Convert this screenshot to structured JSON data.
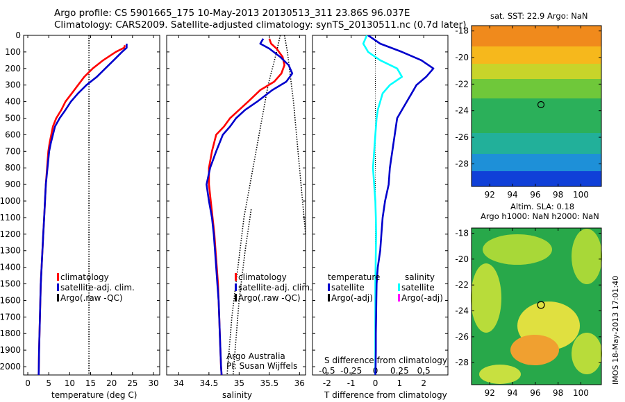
{
  "title_line1": "Argo profile: CS 5901665_175 10-May-2013 20130513_311 23.86S 96.037E",
  "title_line2": "Climatology: CARS2009. Satellite-adjusted climatology: synTS_20130511.nc (0.7d later)",
  "stamp": "IMOS 18-May-2013 17:01:40",
  "colors": {
    "climatology": "#ff0000",
    "satellite": "#0000cc",
    "argo": "#000000",
    "s_satellite": "#00ffff",
    "s_argo": "#ff00ff"
  },
  "depth_axis": {
    "ylim": [
      0,
      2050
    ],
    "reversed": true,
    "ticks": [
      0,
      100,
      200,
      300,
      400,
      500,
      600,
      700,
      800,
      900,
      1000,
      1100,
      1200,
      1300,
      1400,
      1500,
      1600,
      1700,
      1800,
      1900,
      2000
    ]
  },
  "panels": {
    "temperature": {
      "xlabel": "temperature (deg C)",
      "xticks": [
        0,
        5,
        10,
        15,
        20,
        25,
        30
      ],
      "legend": [
        "climatology",
        "satellite-adj. clim.",
        "Argo(.raw -QC)"
      ]
    },
    "salinity": {
      "xlabel": "salinity",
      "xticks": [
        34,
        34.5,
        35,
        35.5,
        36
      ],
      "legend": [
        "climatology",
        "satellite-adj. clim.",
        "Argo(.raw -QC)"
      ],
      "note1": "Argo Australia",
      "note2": "PI: Susan Wijffels"
    },
    "difference": {
      "xlabel": "T difference from climatology",
      "xlabel_top": "S difference from climatology",
      "xticks_T": [
        -2,
        -1,
        0,
        1,
        2
      ],
      "xticks_S": [
        "-0.5",
        "-0.25",
        "0",
        "0.25",
        "0.5"
      ],
      "legend_temp_head": "temperature",
      "legend_sal_head": "salinity",
      "legend_temp": [
        "satellite",
        "Argo(-adj)"
      ],
      "legend_sal": [
        "satellite",
        "Argo(-adj)"
      ]
    }
  },
  "maps": {
    "sst": {
      "title": "sat. SST: 22.9 Argo: NaN",
      "yticks": [
        -18,
        -20,
        -22,
        -24,
        -26,
        -28
      ],
      "xticks": [
        92,
        94,
        96,
        98,
        100
      ],
      "marker": [
        96.04,
        -23.86
      ]
    },
    "sla": {
      "title1": "Altim. SLA: 0.18",
      "title2": "Argo h1000: NaN h2000: NaN",
      "yticks": [
        -18,
        -20,
        -22,
        -24,
        -26,
        -28
      ],
      "xticks": [
        92,
        94,
        96,
        98,
        100
      ],
      "marker": [
        96.04,
        -23.86
      ]
    }
  },
  "chart_data": [
    {
      "type": "line",
      "title": "",
      "xlabel": "temperature (deg C)",
      "ylabel": "",
      "xlim": [
        -1,
        31.5
      ],
      "ylim": [
        2050,
        0
      ],
      "series": [
        {
          "name": "climatology",
          "x": [
            23.2,
            23,
            21,
            18,
            15.5,
            13.5,
            12,
            10.5,
            9,
            8,
            6.8,
            6,
            5.6,
            5.2,
            4.9,
            4.6,
            4.3,
            4.1,
            3.9,
            3.7,
            3.5,
            3.3,
            3.1,
            3,
            2.9,
            2.8,
            2.7,
            2.6
          ],
          "y": [
            60,
            75,
            100,
            150,
            200,
            250,
            300,
            350,
            400,
            450,
            500,
            550,
            600,
            650,
            700,
            800,
            900,
            1000,
            1100,
            1200,
            1300,
            1400,
            1500,
            1600,
            1700,
            1800,
            1900,
            2050
          ]
        },
        {
          "name": "satellite-adj. clim.",
          "x": [
            23.6,
            23.6,
            22.5,
            20.5,
            18.5,
            16.5,
            14,
            12,
            10.3,
            9,
            7.6,
            6.5,
            6,
            5.5,
            5.1,
            4.7,
            4.3,
            4.1,
            3.9,
            3.7,
            3.5,
            3.3,
            3.1,
            3,
            2.9,
            2.8,
            2.7,
            2.6
          ],
          "y": [
            50,
            75,
            100,
            150,
            200,
            250,
            300,
            350,
            400,
            450,
            500,
            550,
            600,
            650,
            700,
            800,
            900,
            1000,
            1100,
            1200,
            1300,
            1400,
            1500,
            1600,
            1700,
            1800,
            1900,
            2050
          ]
        },
        {
          "name": "Argo(.raw -QC)",
          "x": [
            14.6,
            14.6
          ],
          "y": [
            0,
            2050
          ]
        }
      ]
    },
    {
      "type": "line",
      "title": "",
      "xlabel": "salinity",
      "ylabel": "",
      "xlim": [
        33.8,
        36.1
      ],
      "ylim": [
        2050,
        0
      ],
      "series": [
        {
          "name": "climatology",
          "x": [
            35.5,
            35.53,
            35.62,
            35.72,
            35.75,
            35.7,
            35.58,
            35.35,
            35.15,
            35,
            34.85,
            34.75,
            34.62,
            34.55,
            34.5,
            34.5,
            34.53,
            34.56,
            34.59,
            34.61,
            34.63,
            34.65,
            34.66,
            34.67,
            34.68,
            34.69,
            34.7,
            34.71
          ],
          "y": [
            20,
            50,
            80,
            130,
            180,
            230,
            280,
            330,
            400,
            450,
            500,
            550,
            600,
            700,
            800,
            900,
            1000,
            1100,
            1200,
            1300,
            1400,
            1500,
            1600,
            1700,
            1800,
            1900,
            2000,
            2050
          ]
        },
        {
          "name": "satellite-adj. clim.",
          "x": [
            35.4,
            35.35,
            35.5,
            35.68,
            35.82,
            35.88,
            35.78,
            35.55,
            35.3,
            35.1,
            34.95,
            34.85,
            34.73,
            34.62,
            34.52,
            34.46,
            34.5,
            34.55,
            34.58,
            34.6,
            34.62,
            34.64,
            34.66,
            34.67,
            34.68,
            34.69,
            34.7,
            34.71
          ],
          "y": [
            20,
            50,
            80,
            130,
            180,
            230,
            280,
            330,
            400,
            450,
            500,
            550,
            600,
            700,
            800,
            900,
            1000,
            1100,
            1200,
            1300,
            1400,
            1500,
            1600,
            1700,
            1800,
            1900,
            2000,
            2050
          ]
        },
        {
          "name": "Argo(.raw -QC) left",
          "x": [
            35.68,
            35.62,
            35.55,
            35.48,
            35.38,
            35.28,
            35.18,
            35.08,
            34.98,
            34.88,
            34.8
          ],
          "y": [
            0,
            100,
            200,
            300,
            500,
            700,
            900,
            1100,
            1400,
            1700,
            2050
          ]
        },
        {
          "name": "Argo(.raw -QC) right",
          "x": [
            35.75,
            35.8,
            35.9,
            36,
            36.1
          ],
          "y": [
            0,
            100,
            400,
            800,
            1200
          ]
        },
        {
          "name": "Argo(.raw -QC) mid",
          "x": [
            35.2,
            35.1,
            35,
            34.9
          ],
          "y": [
            1050,
            1300,
            1600,
            2050
          ]
        }
      ]
    },
    {
      "type": "line",
      "title": "",
      "xlabel": "T difference from climatology",
      "ylabel": "",
      "xlim": [
        -2.6,
        3
      ],
      "ylim": [
        2050,
        0
      ],
      "series": [
        {
          "name": "satellite",
          "x": [
            -0.3,
            0.2,
            1.1,
            1.9,
            2.4,
            2.1,
            1.7,
            1.5,
            1.3,
            1.1,
            0.9,
            0.8,
            0.7,
            0.6,
            0.55,
            0.4,
            0.3,
            0.25,
            0.2,
            0.1,
            0.05,
            0.04,
            0.03,
            0.02,
            0.02,
            0.01,
            0.0
          ],
          "y": [
            0,
            50,
            100,
            150,
            200,
            250,
            300,
            350,
            400,
            450,
            500,
            600,
            700,
            800,
            900,
            1000,
            1100,
            1200,
            1300,
            1400,
            1500,
            1600,
            1700,
            1800,
            1900,
            2000,
            2050
          ]
        },
        {
          "name": "salinity satellite",
          "x": [
            -0.35,
            -0.5,
            -0.3,
            0.2,
            0.9,
            1.1,
            0.6,
            0.3,
            0.2,
            0.1,
            0.05,
            0.0,
            -0.05,
            -0.1,
            -0.05,
            0.0,
            0.02,
            0.03,
            0.02,
            0.01,
            0.0,
            0.0,
            0.0,
            0.0,
            0.0,
            0.0,
            0.0
          ],
          "y": [
            0,
            50,
            100,
            150,
            200,
            250,
            300,
            350,
            400,
            450,
            500,
            600,
            700,
            800,
            900,
            1000,
            1100,
            1200,
            1300,
            1400,
            1500,
            1600,
            1700,
            1800,
            1900,
            2000,
            2050
          ]
        },
        {
          "name": "zero line",
          "x": [
            0,
            0
          ],
          "y": [
            0,
            2050
          ]
        }
      ]
    }
  ]
}
